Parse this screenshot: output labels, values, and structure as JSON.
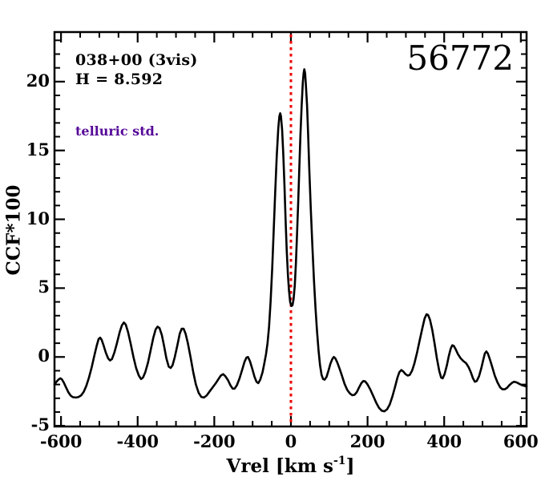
{
  "figure": {
    "id_label": "56772",
    "field_label": "038+00 (3vis)",
    "h_mag_label": "H = 8.592",
    "note_label": "telluric std.",
    "note_color": "#560a98",
    "background": "#ffffff"
  },
  "chart_data": {
    "type": "line",
    "title": "56772",
    "xlabel": "Vrel [km s^-1]",
    "xlabel_prefix": "Vrel [km s",
    "xlabel_sup": "-1",
    "xlabel_suffix": "]",
    "ylabel": "CCF*100",
    "xlim": [
      -617,
      615
    ],
    "ylim": [
      -5.05,
      23.6
    ],
    "x_major_ticks": [
      -600,
      -400,
      -200,
      0,
      200,
      400,
      600
    ],
    "x_minor_step": 50,
    "y_major_ticks": [
      -5,
      0,
      5,
      10,
      15,
      20
    ],
    "y_minor_step": 1,
    "grid": false,
    "line_color": "#000000",
    "frame_color": "#000000",
    "marker_line": {
      "x": 0,
      "color": "#ee0000",
      "style": "dotted"
    },
    "series": [
      {
        "name": "CCF",
        "points": [
          [
            -617,
            -2.0
          ],
          [
            -612,
            -1.8
          ],
          [
            -607,
            -1.65
          ],
          [
            -602,
            -1.55
          ],
          [
            -598,
            -1.62
          ],
          [
            -593,
            -1.85
          ],
          [
            -587,
            -2.2
          ],
          [
            -581,
            -2.55
          ],
          [
            -575,
            -2.8
          ],
          [
            -569,
            -2.92
          ],
          [
            -562,
            -2.95
          ],
          [
            -555,
            -2.92
          ],
          [
            -548,
            -2.8
          ],
          [
            -541,
            -2.55
          ],
          [
            -534,
            -2.1
          ],
          [
            -527,
            -1.5
          ],
          [
            -520,
            -0.75
          ],
          [
            -513,
            0.1
          ],
          [
            -507,
            0.8
          ],
          [
            -502,
            1.3
          ],
          [
            -498,
            1.4
          ],
          [
            -494,
            1.25
          ],
          [
            -489,
            0.85
          ],
          [
            -483,
            0.3
          ],
          [
            -477,
            -0.1
          ],
          [
            -472,
            -0.25
          ],
          [
            -467,
            -0.15
          ],
          [
            -461,
            0.3
          ],
          [
            -454,
            1.0
          ],
          [
            -447,
            1.8
          ],
          [
            -441,
            2.3
          ],
          [
            -436,
            2.5
          ],
          [
            -431,
            2.35
          ],
          [
            -425,
            1.8
          ],
          [
            -418,
            0.95
          ],
          [
            -411,
            0.0
          ],
          [
            -404,
            -0.8
          ],
          [
            -397,
            -1.35
          ],
          [
            -391,
            -1.6
          ],
          [
            -386,
            -1.5
          ],
          [
            -380,
            -1.1
          ],
          [
            -373,
            -0.4
          ],
          [
            -366,
            0.5
          ],
          [
            -359,
            1.4
          ],
          [
            -353,
            2.0
          ],
          [
            -348,
            2.2
          ],
          [
            -343,
            2.1
          ],
          [
            -337,
            1.6
          ],
          [
            -331,
            0.8
          ],
          [
            -325,
            -0.1
          ],
          [
            -319,
            -0.7
          ],
          [
            -314,
            -0.8
          ],
          [
            -309,
            -0.6
          ],
          [
            -303,
            0.0
          ],
          [
            -296,
            0.9
          ],
          [
            -290,
            1.7
          ],
          [
            -285,
            2.05
          ],
          [
            -280,
            2.05
          ],
          [
            -275,
            1.7
          ],
          [
            -269,
            1.0
          ],
          [
            -262,
            0.0
          ],
          [
            -255,
            -1.1
          ],
          [
            -248,
            -2.0
          ],
          [
            -241,
            -2.6
          ],
          [
            -234,
            -2.9
          ],
          [
            -227,
            -2.95
          ],
          [
            -220,
            -2.8
          ],
          [
            -212,
            -2.5
          ],
          [
            -204,
            -2.2
          ],
          [
            -196,
            -1.9
          ],
          [
            -189,
            -1.6
          ],
          [
            -183,
            -1.35
          ],
          [
            -177,
            -1.25
          ],
          [
            -171,
            -1.4
          ],
          [
            -164,
            -1.7
          ],
          [
            -158,
            -2.05
          ],
          [
            -152,
            -2.3
          ],
          [
            -147,
            -2.3
          ],
          [
            -141,
            -2.05
          ],
          [
            -134,
            -1.55
          ],
          [
            -127,
            -0.9
          ],
          [
            -121,
            -0.35
          ],
          [
            -116,
            -0.05
          ],
          [
            -112,
            0.0
          ],
          [
            -107,
            -0.3
          ],
          [
            -101,
            -0.85
          ],
          [
            -95,
            -1.45
          ],
          [
            -90,
            -1.8
          ],
          [
            -85,
            -1.9
          ],
          [
            -80,
            -1.65
          ],
          [
            -74,
            -1.1
          ],
          [
            -69,
            -0.4
          ],
          [
            -65,
            0.2
          ],
          [
            -61,
            1.0
          ],
          [
            -57,
            2.2
          ],
          [
            -53,
            4.0
          ],
          [
            -49,
            6.4
          ],
          [
            -45,
            9.2
          ],
          [
            -41,
            12.0
          ],
          [
            -37,
            14.6
          ],
          [
            -33,
            16.6
          ],
          [
            -30,
            17.5
          ],
          [
            -28,
            17.7
          ],
          [
            -26,
            17.5
          ],
          [
            -23,
            16.5
          ],
          [
            -20,
            14.8
          ],
          [
            -17,
            12.5
          ],
          [
            -14,
            10.0
          ],
          [
            -11,
            7.8
          ],
          [
            -8,
            6.0
          ],
          [
            -5,
            4.8
          ],
          [
            -2,
            4.0
          ],
          [
            1,
            3.7
          ],
          [
            4,
            3.75
          ],
          [
            7,
            4.2
          ],
          [
            10,
            5.2
          ],
          [
            13,
            6.8
          ],
          [
            16,
            8.9
          ],
          [
            19,
            11.3
          ],
          [
            22,
            13.8
          ],
          [
            25,
            16.2
          ],
          [
            28,
            18.3
          ],
          [
            31,
            19.9
          ],
          [
            33,
            20.6
          ],
          [
            35,
            20.9
          ],
          [
            37,
            20.6
          ],
          [
            39,
            19.8
          ],
          [
            42,
            18.3
          ],
          [
            45,
            16.1
          ],
          [
            48,
            13.6
          ],
          [
            52,
            10.7
          ],
          [
            56,
            8.0
          ],
          [
            60,
            5.6
          ],
          [
            64,
            3.6
          ],
          [
            68,
            1.9
          ],
          [
            72,
            0.5
          ],
          [
            76,
            -0.6
          ],
          [
            80,
            -1.3
          ],
          [
            84,
            -1.6
          ],
          [
            88,
            -1.65
          ],
          [
            93,
            -1.45
          ],
          [
            98,
            -1.0
          ],
          [
            103,
            -0.5
          ],
          [
            108,
            -0.15
          ],
          [
            112,
            0.0
          ],
          [
            116,
            -0.1
          ],
          [
            121,
            -0.4
          ],
          [
            127,
            -0.85
          ],
          [
            133,
            -1.35
          ],
          [
            140,
            -1.95
          ],
          [
            147,
            -2.4
          ],
          [
            154,
            -2.65
          ],
          [
            160,
            -2.78
          ],
          [
            166,
            -2.75
          ],
          [
            172,
            -2.55
          ],
          [
            178,
            -2.2
          ],
          [
            184,
            -1.9
          ],
          [
            189,
            -1.75
          ],
          [
            194,
            -1.78
          ],
          [
            200,
            -2.0
          ],
          [
            207,
            -2.35
          ],
          [
            215,
            -2.85
          ],
          [
            223,
            -3.35
          ],
          [
            230,
            -3.7
          ],
          [
            237,
            -3.9
          ],
          [
            244,
            -3.95
          ],
          [
            251,
            -3.8
          ],
          [
            258,
            -3.45
          ],
          [
            265,
            -2.85
          ],
          [
            272,
            -2.15
          ],
          [
            278,
            -1.5
          ],
          [
            283,
            -1.1
          ],
          [
            288,
            -0.95
          ],
          [
            293,
            -1.05
          ],
          [
            299,
            -1.25
          ],
          [
            305,
            -1.35
          ],
          [
            310,
            -1.3
          ],
          [
            316,
            -1.0
          ],
          [
            322,
            -0.5
          ],
          [
            329,
            0.3
          ],
          [
            336,
            1.2
          ],
          [
            343,
            2.1
          ],
          [
            349,
            2.8
          ],
          [
            354,
            3.1
          ],
          [
            358,
            3.05
          ],
          [
            363,
            2.7
          ],
          [
            369,
            1.95
          ],
          [
            375,
            0.95
          ],
          [
            381,
            -0.1
          ],
          [
            387,
            -1.0
          ],
          [
            392,
            -1.5
          ],
          [
            396,
            -1.55
          ],
          [
            401,
            -1.25
          ],
          [
            407,
            -0.6
          ],
          [
            412,
            0.05
          ],
          [
            417,
            0.6
          ],
          [
            421,
            0.85
          ],
          [
            425,
            0.8
          ],
          [
            430,
            0.55
          ],
          [
            436,
            0.2
          ],
          [
            443,
            -0.1
          ],
          [
            450,
            -0.3
          ],
          [
            457,
            -0.45
          ],
          [
            464,
            -0.75
          ],
          [
            470,
            -1.15
          ],
          [
            475,
            -1.55
          ],
          [
            480,
            -1.8
          ],
          [
            485,
            -1.75
          ],
          [
            491,
            -1.4
          ],
          [
            497,
            -0.8
          ],
          [
            502,
            -0.2
          ],
          [
            506,
            0.25
          ],
          [
            510,
            0.4
          ],
          [
            514,
            0.25
          ],
          [
            519,
            -0.15
          ],
          [
            525,
            -0.7
          ],
          [
            532,
            -1.35
          ],
          [
            539,
            -1.85
          ],
          [
            546,
            -2.2
          ],
          [
            552,
            -2.35
          ],
          [
            558,
            -2.35
          ],
          [
            564,
            -2.25
          ],
          [
            570,
            -2.05
          ],
          [
            576,
            -1.9
          ],
          [
            582,
            -1.8
          ],
          [
            589,
            -1.85
          ],
          [
            596,
            -1.95
          ],
          [
            603,
            -2.05
          ],
          [
            609,
            -2.1
          ],
          [
            615,
            -2.15
          ]
        ]
      }
    ]
  }
}
